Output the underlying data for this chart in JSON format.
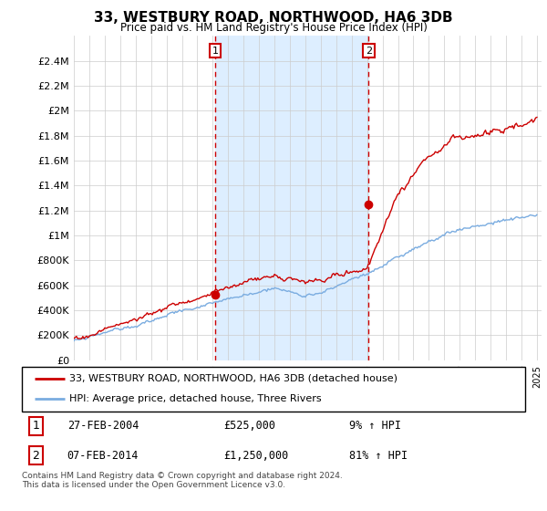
{
  "title": "33, WESTBURY ROAD, NORTHWOOD, HA6 3DB",
  "subtitle": "Price paid vs. HM Land Registry's House Price Index (HPI)",
  "ylim": [
    0,
    2600000
  ],
  "yticks": [
    0,
    200000,
    400000,
    600000,
    800000,
    1000000,
    1200000,
    1400000,
    1600000,
    1800000,
    2000000,
    2200000,
    2400000
  ],
  "ytick_labels": [
    "£0",
    "£200K",
    "£400K",
    "£600K",
    "£800K",
    "£1M",
    "£1.2M",
    "£1.4M",
    "£1.6M",
    "£1.8M",
    "£2M",
    "£2.2M",
    "£2.4M"
  ],
  "sale1_year": 2004.15,
  "sale1_price": 525000,
  "sale2_year": 2014.1,
  "sale2_price": 1250000,
  "red_line_color": "#cc0000",
  "blue_line_color": "#7aace0",
  "shade_color": "#ddeeff",
  "annotation1_label": "1",
  "annotation2_label": "2",
  "legend_red_label": "33, WESTBURY ROAD, NORTHWOOD, HA6 3DB (detached house)",
  "legend_blue_label": "HPI: Average price, detached house, Three Rivers",
  "table_row1": [
    "1",
    "27-FEB-2004",
    "£525,000",
    "9% ↑ HPI"
  ],
  "table_row2": [
    "2",
    "07-FEB-2014",
    "£1,250,000",
    "81% ↑ HPI"
  ],
  "footer": "Contains HM Land Registry data © Crown copyright and database right 2024.\nThis data is licensed under the Open Government Licence v3.0.",
  "background_color": "#ffffff",
  "grid_color": "#cccccc"
}
